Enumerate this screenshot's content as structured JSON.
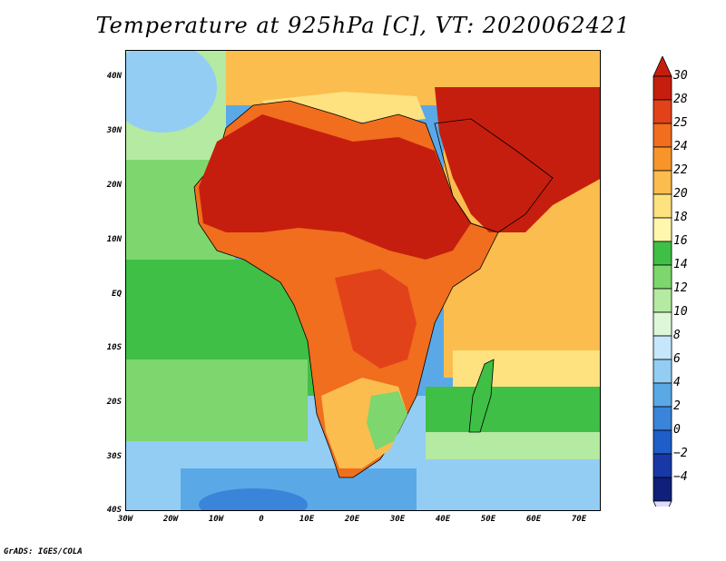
{
  "title": "Temperature at 925hPa [C], VT: 2020062421",
  "credit": "GrADS: IGES/COLA",
  "map": {
    "projection": "latlon",
    "lon_range": [
      -30,
      75
    ],
    "lat_range": [
      -40,
      45
    ],
    "variable": "Temperature at 925hPa",
    "units": "C",
    "lat_labels": [
      "40N",
      "30N",
      "20N",
      "10N",
      "EQ",
      "10S",
      "20S",
      "30S",
      "40S"
    ],
    "lon_labels": [
      "30W",
      "20W",
      "10W",
      "0",
      "10E",
      "20E",
      "30E",
      "40E",
      "50E",
      "60E",
      "70E"
    ]
  },
  "colorbar": {
    "labels": [
      "30",
      "28",
      "25",
      "24",
      "22",
      "20",
      "18",
      "16",
      "14",
      "12",
      "10",
      "8",
      "6",
      "4",
      "2",
      "0",
      "−2",
      "−4"
    ],
    "colors": [
      "#c61e0e",
      "#e2421a",
      "#f06e1e",
      "#f7952a",
      "#fbbd4e",
      "#fde27f",
      "#fff7ad",
      "#3fbf45",
      "#7ed66f",
      "#b4eaa1",
      "#ddf7d8",
      "#c6e6fb",
      "#93cdf4",
      "#5aa9e6",
      "#3a84da",
      "#1f5dc9",
      "#1838a6",
      "#0f1f7a"
    ],
    "top_arrow_color": "#c61e0e",
    "bottom_arrow_color": "#e0dafc"
  }
}
